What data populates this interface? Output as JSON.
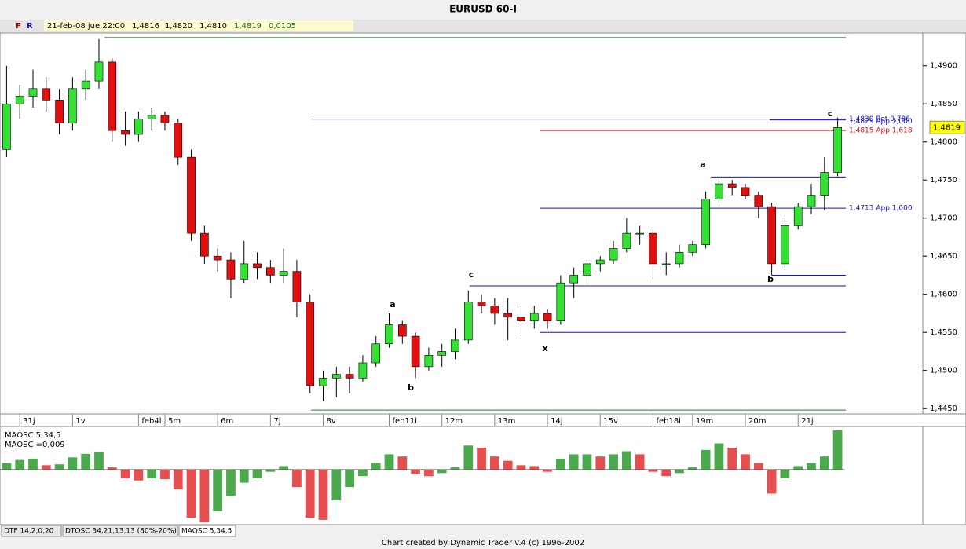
{
  "header": {
    "title": "EURUSD 60-I",
    "f": "F",
    "r": "R",
    "date": "21-feb-08 jue 22:00",
    "open": "1,4816",
    "high": "1,4820",
    "low": "1,4810",
    "close": "1,4819",
    "change": "0,0105"
  },
  "chart_data": [
    {
      "type": "candlestick",
      "categories": [
        null,
        "31j",
        null,
        null,
        null,
        "1v",
        null,
        null,
        null,
        null,
        "feb4l",
        null,
        "5m",
        null,
        null,
        null,
        "6m",
        null,
        null,
        null,
        "7j",
        null,
        null,
        null,
        "8v",
        null,
        null,
        null,
        null,
        "feb11l",
        null,
        null,
        null,
        "12m",
        null,
        null,
        null,
        "13m",
        null,
        null,
        null,
        "14j",
        null,
        null,
        null,
        "15v",
        null,
        null,
        null,
        "feb18l",
        null,
        null,
        "19m",
        null,
        null,
        null,
        "20m",
        null,
        null,
        null,
        "21j",
        null,
        null,
        null
      ],
      "open": [
        1.479,
        1.485,
        1.486,
        1.487,
        1.4855,
        1.4825,
        1.487,
        1.488,
        1.4905,
        1.4815,
        1.481,
        1.483,
        1.4835,
        1.4825,
        1.478,
        1.468,
        1.465,
        1.4645,
        1.462,
        1.464,
        1.4635,
        1.4625,
        1.463,
        1.459,
        1.448,
        1.449,
        1.4495,
        1.449,
        1.451,
        1.4535,
        1.456,
        1.4545,
        1.4505,
        1.452,
        1.4525,
        1.454,
        1.459,
        1.4585,
        1.4575,
        1.457,
        1.4565,
        1.4575,
        1.4565,
        1.4615,
        1.4625,
        1.464,
        1.4645,
        1.466,
        1.468,
        1.468,
        1.464,
        1.464,
        1.4655,
        1.4665,
        1.4725,
        1.4745,
        1.474,
        1.473,
        1.4715,
        1.464,
        1.469,
        1.4715,
        1.473,
        1.476
      ],
      "high": [
        1.49,
        1.4875,
        1.4895,
        1.4885,
        1.487,
        1.4885,
        1.4895,
        1.4935,
        1.491,
        1.484,
        1.484,
        1.4845,
        1.484,
        1.483,
        1.479,
        1.469,
        1.466,
        1.4655,
        1.467,
        1.4655,
        1.4645,
        1.466,
        1.4645,
        1.46,
        1.45,
        1.4505,
        1.4505,
        1.452,
        1.4545,
        1.4575,
        1.4565,
        1.455,
        1.453,
        1.4535,
        1.4555,
        1.4605,
        1.46,
        1.4595,
        1.4595,
        1.4585,
        1.4585,
        1.458,
        1.4625,
        1.4635,
        1.4645,
        1.465,
        1.467,
        1.47,
        1.469,
        1.4685,
        1.4655,
        1.4665,
        1.467,
        1.4735,
        1.4755,
        1.475,
        1.4745,
        1.4735,
        1.472,
        1.47,
        1.472,
        1.4745,
        1.478,
        1.4832
      ],
      "low": [
        1.478,
        1.483,
        1.4845,
        1.484,
        1.481,
        1.4815,
        1.4855,
        1.487,
        1.48,
        1.4795,
        1.48,
        1.4815,
        1.4815,
        1.477,
        1.467,
        1.464,
        1.463,
        1.4595,
        1.4615,
        1.462,
        1.4615,
        1.4615,
        1.457,
        1.447,
        1.446,
        1.4465,
        1.447,
        1.4485,
        1.4505,
        1.453,
        1.4535,
        1.449,
        1.45,
        1.4505,
        1.4515,
        1.4535,
        1.4575,
        1.456,
        1.454,
        1.4545,
        1.4555,
        1.4555,
        1.456,
        1.4595,
        1.4615,
        1.463,
        1.464,
        1.4655,
        1.4665,
        1.462,
        1.4625,
        1.4635,
        1.465,
        1.466,
        1.472,
        1.473,
        1.4725,
        1.47,
        1.4625,
        1.4635,
        1.4685,
        1.4705,
        1.471,
        1.4755
      ],
      "close": [
        1.485,
        1.486,
        1.487,
        1.4855,
        1.4825,
        1.487,
        1.488,
        1.4905,
        1.4815,
        1.481,
        1.483,
        1.4835,
        1.4825,
        1.478,
        1.468,
        1.465,
        1.4645,
        1.462,
        1.464,
        1.4635,
        1.4625,
        1.463,
        1.459,
        1.448,
        1.449,
        1.4495,
        1.449,
        1.451,
        1.4535,
        1.456,
        1.4545,
        1.4505,
        1.452,
        1.4525,
        1.454,
        1.459,
        1.4585,
        1.4575,
        1.457,
        1.4565,
        1.4575,
        1.4565,
        1.4615,
        1.4625,
        1.464,
        1.4645,
        1.466,
        1.468,
        1.468,
        1.464,
        1.464,
        1.4655,
        1.4665,
        1.4725,
        1.4745,
        1.474,
        1.473,
        1.4715,
        1.464,
        1.469,
        1.4715,
        1.473,
        1.476,
        1.4819
      ],
      "up_color": "#33e033",
      "down_color": "#e01010",
      "ylim": [
        1.4443,
        1.4943
      ],
      "yticks": [
        {
          "value": 1.445,
          "label": "1,4450"
        },
        {
          "value": 1.45,
          "label": "1,4500"
        },
        {
          "value": 1.455,
          "label": "1,4550"
        },
        {
          "value": 1.46,
          "label": "1,4600"
        },
        {
          "value": 1.465,
          "label": "1,4650"
        },
        {
          "value": 1.47,
          "label": "1,4700"
        },
        {
          "value": 1.475,
          "label": "1,4750"
        },
        {
          "value": 1.48,
          "label": "1,4800"
        },
        {
          "value": 1.485,
          "label": "1,4850"
        },
        {
          "value": 1.49,
          "label": "1,4900"
        }
      ],
      "last_price": {
        "value": 1.4819,
        "label": "1,4819"
      },
      "levels": [
        {
          "value": 1.4937,
          "color": "#208020"
        },
        {
          "value": 1.483,
          "color": "#1010d0",
          "label": "1,4830 Ret 0,786"
        },
        {
          "value": 1.4829,
          "color": "#1010d0",
          "label": "1,4829 App 1,000"
        },
        {
          "value": 1.4815,
          "color": "#e01010",
          "label": "1,4815 App 1,618"
        },
        {
          "value": 1.4754,
          "color": "#1010d0"
        },
        {
          "value": 1.4713,
          "color": "#1010d0",
          "label": "1,4713 App 1,000"
        },
        {
          "value": 1.4625,
          "color": "#1010d0"
        },
        {
          "value": 1.4611,
          "color": "#1010d0"
        },
        {
          "value": 1.455,
          "color": "#1010d0"
        },
        {
          "value": 1.4448,
          "color": "#208020"
        }
      ],
      "annotations": [
        "a",
        "b",
        "c",
        "x",
        "a",
        "b",
        "c"
      ]
    },
    {
      "type": "bar",
      "title": "MAOSC 5,34,5",
      "readout": "MAOSC =0,009",
      "values": [
        0.0015,
        0.0022,
        0.0025,
        0.001,
        0.0012,
        0.0028,
        0.0036,
        0.004,
        0.0005,
        -0.002,
        -0.0025,
        -0.002,
        -0.0022,
        -0.0045,
        -0.011,
        -0.012,
        -0.0095,
        -0.006,
        -0.003,
        -0.002,
        -0.0005,
        0.0008,
        -0.004,
        -0.011,
        -0.0115,
        -0.007,
        -0.004,
        -0.0015,
        0.0015,
        0.0035,
        0.003,
        -0.001,
        -0.0015,
        -0.0008,
        0.0005,
        0.0055,
        0.005,
        0.003,
        0.002,
        0.001,
        0.0008,
        -0.0005,
        0.0025,
        0.0035,
        0.0035,
        0.003,
        0.0035,
        0.0042,
        0.0035,
        -0.0005,
        -0.0015,
        -0.0008,
        0.0005,
        0.0045,
        0.006,
        0.005,
        0.0035,
        0.0015,
        -0.0055,
        -0.002,
        0.0008,
        0.0015,
        0.003,
        0.009
      ],
      "ylim": [
        -0.0126,
        0.0095
      ],
      "up_color": "#2e9a2e",
      "down_color": "#e03030"
    }
  ],
  "tabs": [
    "DTF 14,2,0,20",
    "DTOSC 34,21,13,13 (80%-20%)",
    "MAOSC 5,34,5"
  ],
  "footer": "Chart created by Dynamic Trader v.4  (c)  1996-2002"
}
